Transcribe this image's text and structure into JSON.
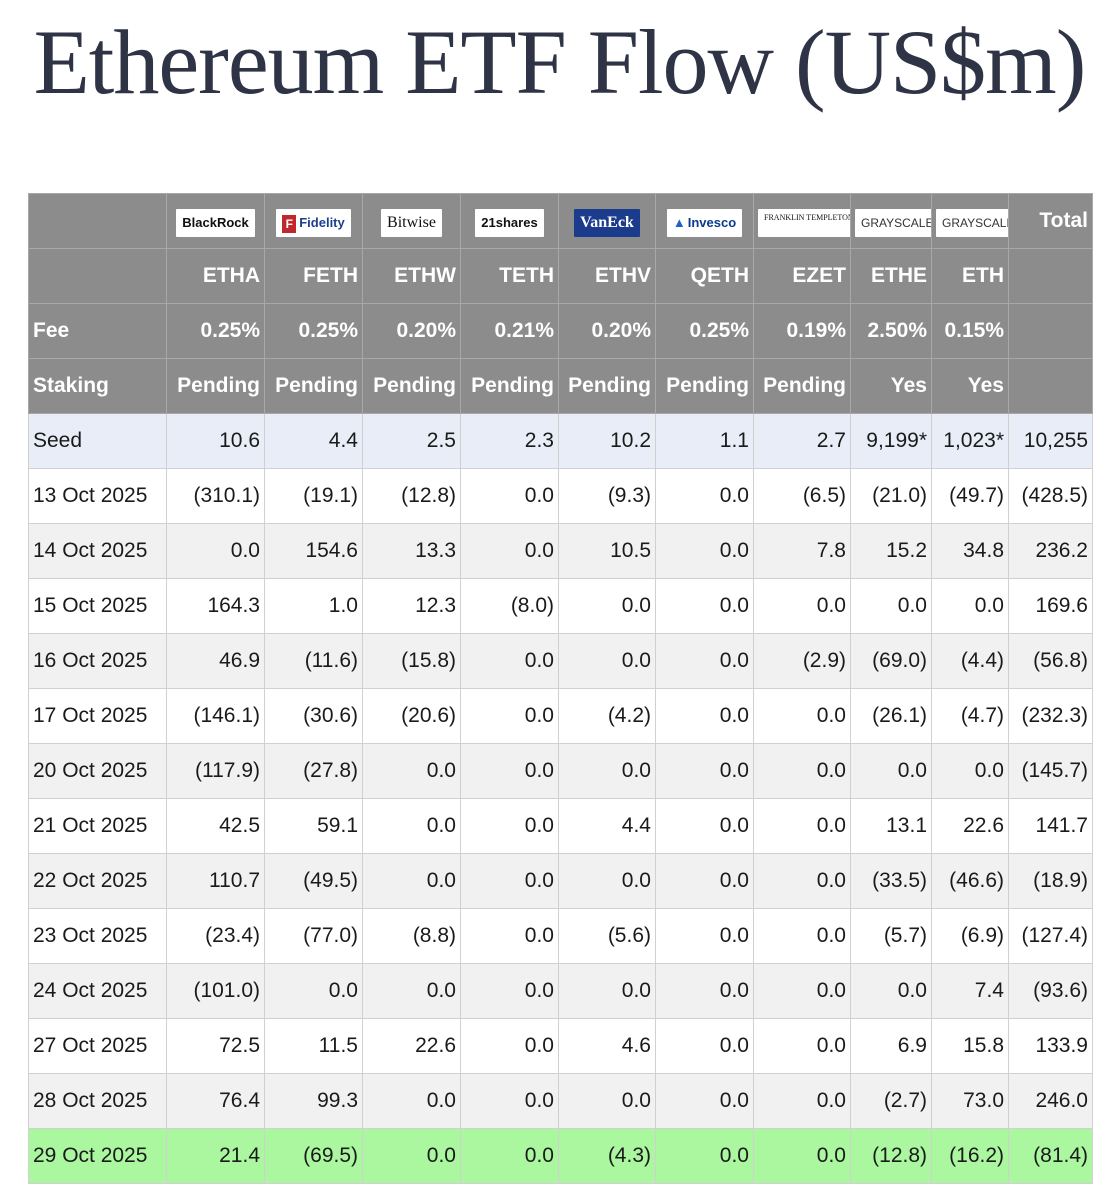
{
  "title": "Ethereum ETF Flow (US$m)",
  "colors": {
    "header_bg": "#8c8c8c",
    "seed_bg": "#e8edf7",
    "highlight_bg": "#aaf7a0",
    "negative": "#d9261c"
  },
  "issuers": [
    "BlackRock",
    "Fidelity",
    "Bitwise",
    "21shares",
    "VanEck",
    "Invesco",
    "FRANKLIN TEMPLETON",
    "GRAYSCALE",
    "GRAYSCALE"
  ],
  "total_label": "Total",
  "tickers": [
    "ETHA",
    "FETH",
    "ETHW",
    "TETH",
    "ETHV",
    "QETH",
    "EZET",
    "ETHE",
    "ETH"
  ],
  "fee": {
    "label": "Fee",
    "values": [
      "0.25%",
      "0.25%",
      "0.20%",
      "0.21%",
      "0.20%",
      "0.25%",
      "0.19%",
      "2.50%",
      "0.15%"
    ]
  },
  "staking": {
    "label": "Staking",
    "values": [
      "Pending",
      "Pending",
      "Pending",
      "Pending",
      "Pending",
      "Pending",
      "Pending",
      "Yes",
      "Yes"
    ]
  },
  "rows": [
    {
      "label": "Seed",
      "cells": [
        "10.6",
        "4.4",
        "2.5",
        "2.3",
        "10.2",
        "1.1",
        "2.7",
        "9,199*",
        "1,023*",
        "10,255"
      ]
    },
    {
      "label": "13 Oct 2025",
      "cells": [
        "(310.1)",
        "(19.1)",
        "(12.8)",
        "0.0",
        "(9.3)",
        "0.0",
        "(6.5)",
        "(21.0)",
        "(49.7)",
        "(428.5)"
      ]
    },
    {
      "label": "14 Oct 2025",
      "cells": [
        "0.0",
        "154.6",
        "13.3",
        "0.0",
        "10.5",
        "0.0",
        "7.8",
        "15.2",
        "34.8",
        "236.2"
      ]
    },
    {
      "label": "15 Oct 2025",
      "cells": [
        "164.3",
        "1.0",
        "12.3",
        "(8.0)",
        "0.0",
        "0.0",
        "0.0",
        "0.0",
        "0.0",
        "169.6"
      ]
    },
    {
      "label": "16 Oct 2025",
      "cells": [
        "46.9",
        "(11.6)",
        "(15.8)",
        "0.0",
        "0.0",
        "0.0",
        "(2.9)",
        "(69.0)",
        "(4.4)",
        "(56.8)"
      ]
    },
    {
      "label": "17 Oct 2025",
      "cells": [
        "(146.1)",
        "(30.6)",
        "(20.6)",
        "0.0",
        "(4.2)",
        "0.0",
        "0.0",
        "(26.1)",
        "(4.7)",
        "(232.3)"
      ]
    },
    {
      "label": "20 Oct 2025",
      "cells": [
        "(117.9)",
        "(27.8)",
        "0.0",
        "0.0",
        "0.0",
        "0.0",
        "0.0",
        "0.0",
        "0.0",
        "(145.7)"
      ]
    },
    {
      "label": "21 Oct 2025",
      "cells": [
        "42.5",
        "59.1",
        "0.0",
        "0.0",
        "4.4",
        "0.0",
        "0.0",
        "13.1",
        "22.6",
        "141.7"
      ]
    },
    {
      "label": "22 Oct 2025",
      "cells": [
        "110.7",
        "(49.5)",
        "0.0",
        "0.0",
        "0.0",
        "0.0",
        "0.0",
        "(33.5)",
        "(46.6)",
        "(18.9)"
      ]
    },
    {
      "label": "23 Oct 2025",
      "cells": [
        "(23.4)",
        "(77.0)",
        "(8.8)",
        "0.0",
        "(5.6)",
        "0.0",
        "0.0",
        "(5.7)",
        "(6.9)",
        "(127.4)"
      ]
    },
    {
      "label": "24 Oct 2025",
      "cells": [
        "(101.0)",
        "0.0",
        "0.0",
        "0.0",
        "0.0",
        "0.0",
        "0.0",
        "0.0",
        "7.4",
        "(93.6)"
      ]
    },
    {
      "label": "27 Oct 2025",
      "cells": [
        "72.5",
        "11.5",
        "22.6",
        "0.0",
        "4.6",
        "0.0",
        "0.0",
        "6.9",
        "15.8",
        "133.9"
      ]
    },
    {
      "label": "28 Oct 2025",
      "cells": [
        "76.4",
        "99.3",
        "0.0",
        "0.0",
        "0.0",
        "0.0",
        "0.0",
        "(2.7)",
        "73.0",
        "246.0"
      ]
    },
    {
      "label": "29 Oct 2025",
      "cells": [
        "21.4",
        "(69.5)",
        "0.0",
        "0.0",
        "(4.3)",
        "0.0",
        "0.0",
        "(12.8)",
        "(16.2)",
        "(81.4)"
      ]
    }
  ]
}
